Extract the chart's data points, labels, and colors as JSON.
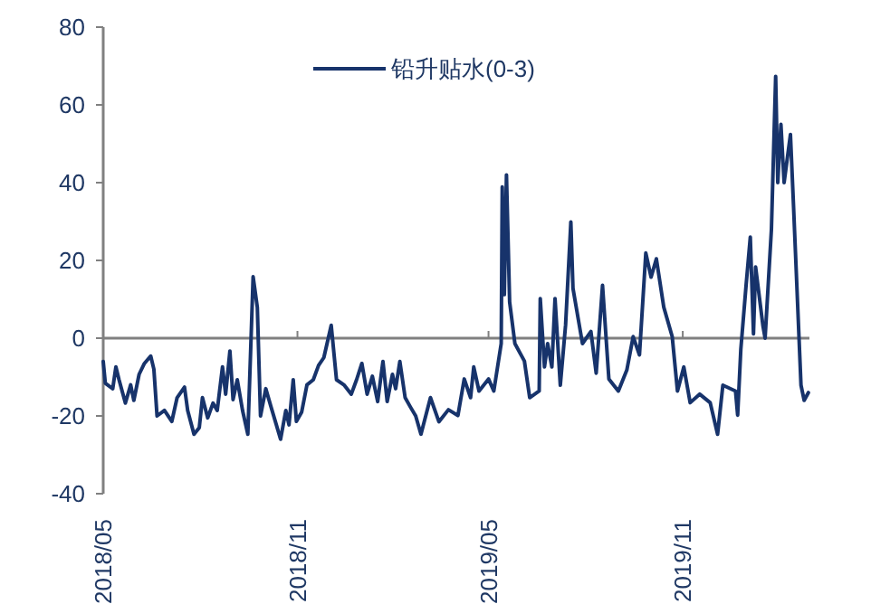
{
  "chart_data": {
    "type": "line",
    "x": [
      "2018-05-01",
      "2018-05-03",
      "2018-05-10",
      "2018-05-13",
      "2018-05-16",
      "2018-05-22",
      "2018-05-27",
      "2018-05-30",
      "2018-06-04",
      "2018-06-09",
      "2018-06-15",
      "2018-06-18",
      "2018-06-21",
      "2018-06-28",
      "2018-07-05",
      "2018-07-10",
      "2018-07-17",
      "2018-07-20",
      "2018-07-26",
      "2018-07-31",
      "2018-08-03",
      "2018-08-08",
      "2018-08-13",
      "2018-08-17",
      "2018-08-22",
      "2018-08-25",
      "2018-08-29",
      "2018-09-01",
      "2018-09-05",
      "2018-09-10",
      "2018-09-15",
      "2018-09-20",
      "2018-09-24",
      "2018-09-27",
      "2018-10-02",
      "2018-10-07",
      "2018-10-12",
      "2018-10-16",
      "2018-10-21",
      "2018-10-24",
      "2018-10-28",
      "2018-10-31",
      "2018-11-05",
      "2018-11-10",
      "2018-11-16",
      "2018-11-21",
      "2018-11-26",
      "2018-12-03",
      "2018-12-08",
      "2018-12-15",
      "2018-12-22",
      "2018-12-27",
      "2019-01-01",
      "2019-01-06",
      "2019-01-11",
      "2019-01-16",
      "2019-01-21",
      "2019-01-25",
      "2019-01-30",
      "2019-02-02",
      "2019-02-06",
      "2019-02-11",
      "2019-02-16",
      "2019-02-21",
      "2019-02-26",
      "2019-03-07",
      "2019-03-15",
      "2019-03-24",
      "2019-04-02",
      "2019-04-08",
      "2019-04-14",
      "2019-04-17",
      "2019-04-22",
      "2019-05-01",
      "2019-05-06",
      "2019-05-13",
      "2019-05-14",
      "2019-05-16",
      "2019-05-18",
      "2019-05-21",
      "2019-05-26",
      "2019-06-04",
      "2019-06-09",
      "2019-06-18",
      "2019-06-19",
      "2019-06-23",
      "2019-06-26",
      "2019-06-30",
      "2019-07-03",
      "2019-07-08",
      "2019-07-13",
      "2019-07-18",
      "2019-07-20",
      "2019-07-29",
      "2019-08-06",
      "2019-08-11",
      "2019-08-17",
      "2019-08-23",
      "2019-09-01",
      "2019-09-09",
      "2019-09-15",
      "2019-09-21",
      "2019-09-27",
      "2019-10-02",
      "2019-10-07",
      "2019-10-14",
      "2019-10-22",
      "2019-10-27",
      "2019-11-02",
      "2019-11-08",
      "2019-11-17",
      "2019-11-27",
      "2019-12-04",
      "2019-12-09",
      "2019-12-21",
      "2019-12-23",
      "2019-12-26",
      "2019-12-31",
      "2020-01-04",
      "2020-01-07",
      "2020-01-09",
      "2020-01-16",
      "2020-01-18",
      "2020-01-24",
      "2020-01-28",
      "2020-01-30",
      "2020-02-02",
      "2020-02-05",
      "2020-02-11",
      "2020-02-14",
      "2020-02-21",
      "2020-02-24",
      "2020-02-28"
    ],
    "series": [
      {
        "name": "铅升贴水(0-3)",
        "color": "#17336b",
        "values": [
          -6,
          -11.6,
          -13,
          -7.4,
          -10.7,
          -16.7,
          -12,
          -16,
          -9.3,
          -6.5,
          -4.6,
          -8,
          -20,
          -18.6,
          -21.4,
          -15.3,
          -12.6,
          -18.6,
          -24.7,
          -23,
          -15.3,
          -20.5,
          -16.7,
          -18.6,
          -7.4,
          -14.4,
          -3.3,
          -15.8,
          -10.7,
          -18.6,
          -24.7,
          15.8,
          7.9,
          -20,
          -13,
          -17.7,
          -22.3,
          -26,
          -18.6,
          -22.3,
          -10.7,
          -21.4,
          -19,
          -12,
          -10.7,
          -7,
          -5,
          3.3,
          -10.7,
          -12,
          -14.4,
          -10.7,
          -6.5,
          -14.4,
          -9.8,
          -16.3,
          -6,
          -16.3,
          -9.3,
          -13,
          -6,
          -15.3,
          -17.7,
          -20,
          -24.7,
          -15.3,
          -21.5,
          -18.4,
          -19.9,
          -10.5,
          -15.3,
          -7.4,
          -13.6,
          -10.5,
          -13.6,
          -1.4,
          38.9,
          11.2,
          42,
          9.3,
          -1.4,
          -5.9,
          -15.3,
          -13.6,
          10.2,
          -7.4,
          -1.4,
          -7.4,
          10.2,
          -12.1,
          3.4,
          29.9,
          12.8,
          -1.4,
          1.7,
          -9,
          13.6,
          -10.5,
          -13.6,
          -8.2,
          0.4,
          -4.3,
          21.9,
          15.7,
          20.4,
          8,
          0.4,
          -13.6,
          -7.4,
          -16.6,
          -14.4,
          -16.6,
          -24.7,
          -12.1,
          -13.6,
          -19.8,
          -2.9,
          13.6,
          26,
          1.1,
          18.3,
          3.1,
          0,
          28,
          67.3,
          40,
          55,
          40,
          52.4,
          33.5,
          -12.1,
          -16,
          -14
        ]
      }
    ],
    "xlim": [
      "2018-05-01",
      "2020-02-29"
    ],
    "xticks": [
      {
        "value": "2018-05-01",
        "label": "2018/05"
      },
      {
        "value": "2018-11-01",
        "label": "2018/11"
      },
      {
        "value": "2019-05-01",
        "label": "2019/05"
      },
      {
        "value": "2019-11-01",
        "label": "2019/11"
      }
    ],
    "ylim": [
      -40,
      80
    ],
    "yticks": [
      -40,
      -20,
      0,
      20,
      40,
      60,
      80
    ],
    "ref_lines": [
      {
        "axis": "y",
        "value": 0,
        "color": "#808080"
      }
    ],
    "legend": "top",
    "grid": false
  }
}
